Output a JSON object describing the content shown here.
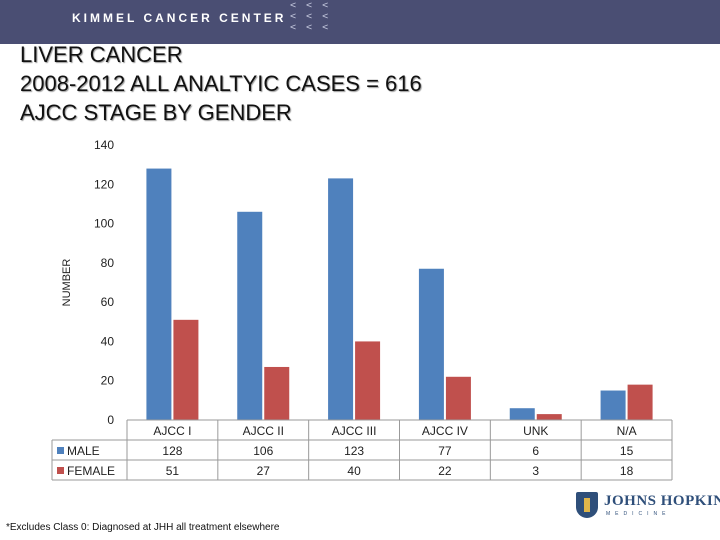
{
  "header": {
    "org_name": "KIMMEL CANCER CENTER"
  },
  "slide": {
    "title_line1": "LIVER CANCER",
    "title_line2": "2008-2012 ALL ANALTYIC CASES = 616",
    "title_line3": "AJCC STAGE BY GENDER"
  },
  "chart_data": {
    "type": "bar",
    "ylabel": "NUMBER",
    "ylim": [
      0,
      140
    ],
    "yticks": [
      0,
      20,
      40,
      60,
      80,
      100,
      120,
      140
    ],
    "categories": [
      "AJCC I",
      "AJCC II",
      "AJCC III",
      "AJCC IV",
      "UNK",
      "N/A"
    ],
    "series": [
      {
        "name": "MALE",
        "color": "#4f81bd",
        "values": [
          128,
          106,
          123,
          77,
          6,
          15
        ]
      },
      {
        "name": "FEMALE",
        "color": "#c0504d",
        "values": [
          51,
          27,
          40,
          22,
          3,
          18
        ]
      }
    ],
    "legend": "data-table-left"
  },
  "footnote": "*Excludes Class 0:  Diagnosed at JHH all treatment elsewhere",
  "logo": {
    "name": "JOHNS HOPKINS",
    "sub": "MEDICINE"
  }
}
